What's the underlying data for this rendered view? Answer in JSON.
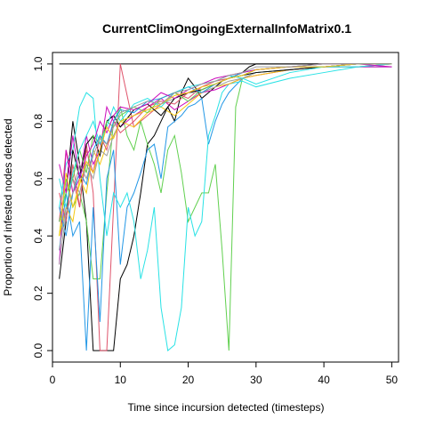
{
  "chart_data": {
    "type": "line",
    "title": "CurrentClimOngoingExternalInfoMatrix0.1",
    "xlabel": "Time since incursion detected (timesteps)",
    "ylabel": "Proportion of infested nodes detected",
    "xlim": [
      0,
      51
    ],
    "ylim": [
      -0.04,
      1.04
    ],
    "xticks": [
      "0",
      "10",
      "20",
      "30",
      "40",
      "50"
    ],
    "yticks": [
      "0.0",
      "0.2",
      "0.4",
      "0.6",
      "0.8",
      "1.0"
    ],
    "grid": false,
    "legend": "none",
    "series": [
      {
        "color": "#000000",
        "x": [
          1,
          50
        ],
        "y": [
          1.0,
          1.0
        ]
      },
      {
        "color": "#000000",
        "x": [
          1,
          2,
          3,
          4,
          5,
          6,
          7,
          8,
          9,
          10,
          11,
          12,
          13,
          14,
          15,
          16,
          17,
          18,
          19,
          20,
          21,
          22,
          23,
          24,
          25,
          26,
          27,
          28,
          29,
          30,
          32,
          35,
          40,
          45,
          50
        ],
        "y": [
          0.45,
          0.55,
          0.8,
          0.65,
          0.45,
          0,
          0,
          0,
          0,
          0.25,
          0.3,
          0.4,
          0.55,
          0.72,
          0.75,
          0.8,
          0.85,
          0.8,
          0.9,
          0.95,
          0.92,
          0.88,
          0.9,
          0.92,
          0.94,
          0.95,
          0.96,
          0.97,
          0.99,
          1,
          1,
          1,
          1,
          1,
          1
        ]
      },
      {
        "color": "#DF536B",
        "x": [
          1,
          2,
          3,
          4,
          5,
          6,
          7,
          8,
          9,
          10,
          12,
          14,
          16,
          18,
          20,
          22,
          24,
          26,
          28,
          30,
          35,
          40,
          45,
          50
        ],
        "y": [
          0.45,
          0.7,
          0.6,
          0.5,
          0.72,
          0.55,
          0,
          0,
          0.5,
          1.0,
          0.78,
          0.82,
          0.86,
          0.9,
          0.88,
          0.92,
          0.94,
          0.96,
          0.97,
          0.98,
          0.99,
          0.99,
          0.99,
          0.99
        ]
      },
      {
        "color": "#61D04F",
        "x": [
          1,
          2,
          3,
          4,
          5,
          6,
          7,
          8,
          9,
          10,
          11,
          12,
          13,
          14,
          15,
          16,
          17,
          18,
          19,
          20,
          21,
          22,
          23,
          24,
          25,
          26,
          27,
          28,
          29,
          30,
          35,
          40,
          45,
          50
        ],
        "y": [
          0.4,
          0.6,
          0.5,
          0.55,
          0.45,
          0.25,
          0.25,
          0.55,
          0.8,
          0.85,
          0.75,
          0.7,
          0.8,
          0.72,
          0.65,
          0.55,
          0.7,
          0.75,
          0.62,
          0.45,
          0.5,
          0.55,
          0.55,
          0.65,
          0.35,
          0,
          0.85,
          0.95,
          0.96,
          0.97,
          0.98,
          0.99,
          0.99,
          1.0
        ]
      },
      {
        "color": "#2297E6",
        "x": [
          1,
          2,
          3,
          4,
          5,
          6,
          7,
          8,
          9,
          10,
          11,
          12,
          13,
          14,
          15,
          16,
          17,
          18,
          19,
          20,
          21,
          22,
          23,
          24,
          25,
          26,
          28,
          30,
          35,
          40,
          45,
          50
        ],
        "y": [
          0.35,
          0.55,
          0.4,
          0.45,
          0,
          0.5,
          0.1,
          0.6,
          0.7,
          0.3,
          0.5,
          0.55,
          0.62,
          0.7,
          0.72,
          0.6,
          0.78,
          0.8,
          0.82,
          0.85,
          0.86,
          0.88,
          0.72,
          0.8,
          0.86,
          0.9,
          0.95,
          0.97,
          0.98,
          0.99,
          1.0,
          1.0
        ]
      },
      {
        "color": "#28E2E5",
        "x": [
          1,
          2,
          3,
          4,
          5,
          6,
          7,
          8,
          9,
          10,
          11,
          12,
          13,
          14,
          15,
          16,
          17,
          18,
          19,
          20,
          21,
          22,
          23,
          24,
          25,
          26,
          28,
          30,
          35,
          40,
          45,
          50
        ],
        "y": [
          0.5,
          0.65,
          0.7,
          0.85,
          0.9,
          0.88,
          0.6,
          0.4,
          0.55,
          0.5,
          0.55,
          0.45,
          0.25,
          0.35,
          0.5,
          0.15,
          0.0,
          0.02,
          0.15,
          0.5,
          0.4,
          0.45,
          0.75,
          0.82,
          0.9,
          0.93,
          0.94,
          0.92,
          0.95,
          0.97,
          0.99,
          0.99
        ]
      },
      {
        "color": "#CD0BBC",
        "x": [
          1,
          2,
          3,
          4,
          5,
          6,
          7,
          8,
          9,
          10,
          12,
          14,
          16,
          18,
          20,
          22,
          24,
          26,
          28,
          30,
          35,
          40,
          45,
          50
        ],
        "y": [
          0.3,
          0.7,
          0.55,
          0.6,
          0.75,
          0.65,
          0.7,
          0.85,
          0.8,
          0.78,
          0.82,
          0.85,
          0.88,
          0.84,
          0.87,
          0.9,
          0.91,
          0.93,
          0.95,
          0.96,
          0.98,
          0.99,
          0.99,
          0.99
        ]
      },
      {
        "color": "#F5C710",
        "x": [
          1,
          2,
          3,
          4,
          5,
          6,
          7,
          8,
          9,
          10,
          12,
          14,
          16,
          18,
          20,
          22,
          24,
          26,
          28,
          30,
          35,
          40,
          45,
          50
        ],
        "y": [
          0.4,
          0.5,
          0.45,
          0.6,
          0.55,
          0.7,
          0.65,
          0.72,
          0.75,
          0.8,
          0.78,
          0.83,
          0.85,
          0.82,
          0.86,
          0.9,
          0.92,
          0.93,
          0.95,
          0.96,
          0.98,
          0.99,
          1.0,
          1.0
        ]
      },
      {
        "color": "#9E9E9E",
        "x": [
          1,
          2,
          3,
          4,
          5,
          6,
          7,
          8,
          9,
          10,
          12,
          14,
          16,
          18,
          20,
          22,
          24,
          26,
          28,
          30,
          35,
          40,
          45,
          50
        ],
        "y": [
          0.35,
          0.5,
          0.6,
          0.55,
          0.65,
          0.6,
          0.7,
          0.68,
          0.75,
          0.8,
          0.82,
          0.84,
          0.86,
          0.88,
          0.9,
          0.9,
          0.92,
          0.94,
          0.95,
          0.97,
          0.98,
          0.99,
          0.99,
          1.0
        ]
      },
      {
        "color": "#000000",
        "x": [
          1,
          2,
          3,
          4,
          5,
          6,
          7,
          8,
          9,
          10,
          12,
          14,
          16,
          18,
          20,
          22,
          24,
          26,
          28,
          30,
          35,
          40,
          45,
          50
        ],
        "y": [
          0.25,
          0.45,
          0.7,
          0.6,
          0.72,
          0.75,
          0.68,
          0.8,
          0.82,
          0.78,
          0.84,
          0.86,
          0.82,
          0.88,
          0.9,
          0.91,
          0.93,
          0.95,
          0.96,
          0.97,
          0.98,
          0.99,
          1.0,
          1.0
        ]
      },
      {
        "color": "#DF536B",
        "x": [
          1,
          2,
          3,
          4,
          5,
          6,
          7,
          8,
          9,
          10,
          12,
          14,
          16,
          18,
          20,
          22,
          24,
          26,
          28,
          30,
          35,
          40,
          45,
          50
        ],
        "y": [
          0.55,
          0.45,
          0.65,
          0.5,
          0.7,
          0.62,
          0.75,
          0.7,
          0.8,
          0.76,
          0.8,
          0.85,
          0.87,
          0.86,
          0.9,
          0.92,
          0.94,
          0.95,
          0.96,
          0.98,
          0.99,
          0.99,
          1.0,
          1.0
        ]
      },
      {
        "color": "#61D04F",
        "x": [
          1,
          2,
          3,
          4,
          5,
          6,
          7,
          8,
          9,
          10,
          12,
          14,
          16,
          18,
          20,
          22,
          24,
          26,
          28,
          30,
          35,
          40,
          45,
          50
        ],
        "y": [
          0.45,
          0.55,
          0.6,
          0.7,
          0.62,
          0.75,
          0.72,
          0.8,
          0.78,
          0.82,
          0.85,
          0.83,
          0.88,
          0.9,
          0.87,
          0.91,
          0.93,
          0.95,
          0.96,
          0.98,
          0.99,
          1.0,
          1.0,
          1.0
        ]
      },
      {
        "color": "#2297E6",
        "x": [
          1,
          2,
          3,
          4,
          5,
          6,
          7,
          8,
          9,
          10,
          12,
          14,
          16,
          18,
          20,
          22,
          24,
          26,
          28,
          30,
          35,
          40,
          45,
          50
        ],
        "y": [
          0.5,
          0.4,
          0.55,
          0.62,
          0.58,
          0.7,
          0.75,
          0.72,
          0.8,
          0.84,
          0.83,
          0.87,
          0.88,
          0.9,
          0.92,
          0.9,
          0.93,
          0.95,
          0.97,
          0.98,
          0.99,
          0.99,
          1.0,
          1.0
        ]
      },
      {
        "color": "#28E2E5",
        "x": [
          1,
          2,
          3,
          4,
          5,
          6,
          7,
          8,
          9,
          10,
          12,
          14,
          16,
          18,
          20,
          22,
          24,
          26,
          28,
          30,
          35,
          40,
          45,
          50
        ],
        "y": [
          0.6,
          0.5,
          0.62,
          0.7,
          0.75,
          0.8,
          0.72,
          0.78,
          0.85,
          0.8,
          0.86,
          0.88,
          0.85,
          0.9,
          0.92,
          0.93,
          0.94,
          0.96,
          0.95,
          0.93,
          0.97,
          0.99,
          0.99,
          1.0
        ]
      },
      {
        "color": "#CD0BBC",
        "x": [
          1,
          2,
          3,
          4,
          5,
          6,
          7,
          8,
          9,
          10,
          12,
          14,
          16,
          18,
          20,
          22,
          24,
          26,
          28,
          30,
          35,
          40,
          45,
          50
        ],
        "y": [
          0.65,
          0.55,
          0.75,
          0.6,
          0.68,
          0.72,
          0.8,
          0.76,
          0.82,
          0.85,
          0.84,
          0.86,
          0.9,
          0.88,
          0.91,
          0.93,
          0.95,
          0.96,
          0.97,
          0.98,
          0.99,
          1.0,
          1.0,
          0.99
        ]
      },
      {
        "color": "#F5C710",
        "x": [
          1,
          2,
          3,
          4,
          5,
          6,
          7,
          8,
          9,
          10,
          12,
          14,
          16,
          18,
          20,
          22,
          24,
          26,
          28,
          30,
          35,
          40,
          45,
          50
        ],
        "y": [
          0.4,
          0.62,
          0.5,
          0.58,
          0.66,
          0.62,
          0.7,
          0.78,
          0.74,
          0.8,
          0.82,
          0.84,
          0.86,
          0.89,
          0.9,
          0.92,
          0.93,
          0.95,
          0.96,
          0.98,
          0.99,
          0.99,
          1.0,
          1.0
        ]
      },
      {
        "color": "#9E9E9E",
        "x": [
          1,
          2,
          3,
          4,
          5,
          6,
          7,
          8,
          9,
          10,
          12,
          14,
          16,
          18,
          20,
          22,
          24,
          26,
          28,
          30,
          35,
          40,
          45,
          50
        ],
        "y": [
          0.3,
          0.48,
          0.55,
          0.65,
          0.6,
          0.68,
          0.74,
          0.72,
          0.78,
          0.83,
          0.85,
          0.87,
          0.86,
          0.9,
          0.91,
          0.93,
          0.94,
          0.96,
          0.97,
          0.99,
          0.99,
          1.0,
          1.0,
          1.0
        ]
      }
    ]
  }
}
